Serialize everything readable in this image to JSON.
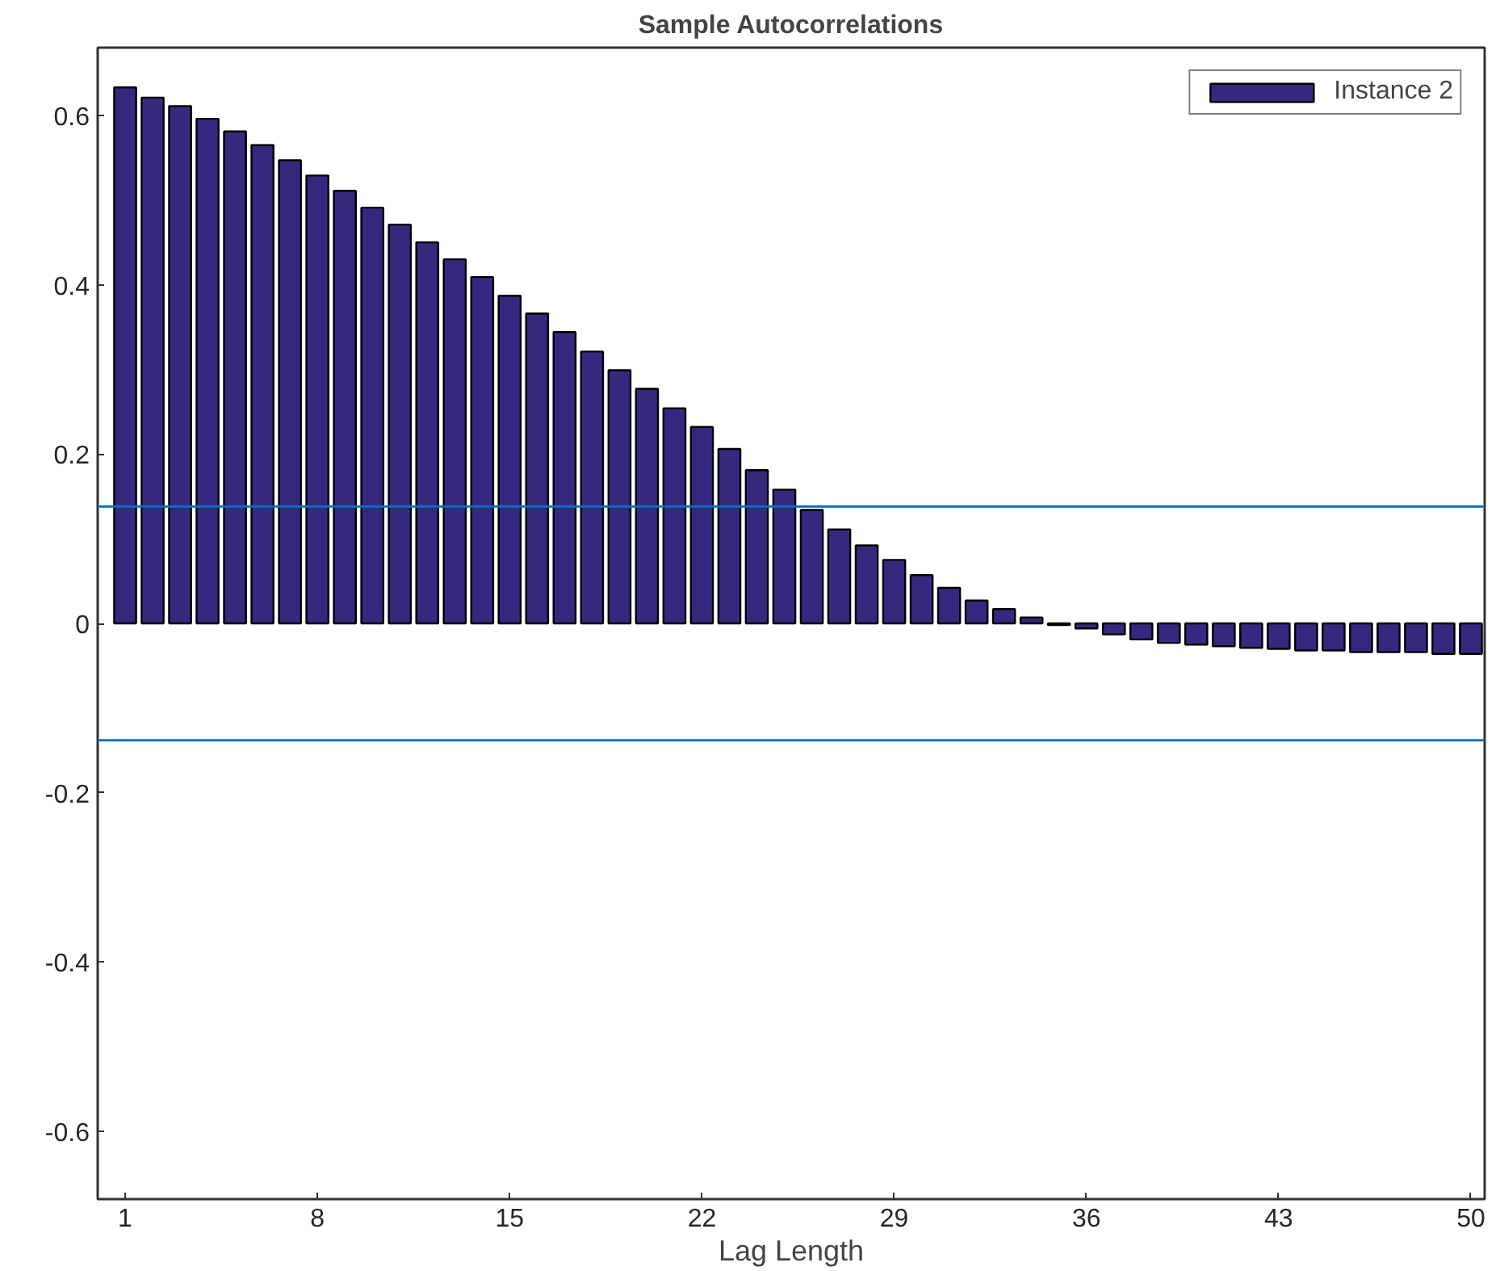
{
  "chart_data": {
    "type": "bar",
    "title": "Sample Autocorrelations",
    "xlabel": "Lag Length",
    "x": [
      1,
      2,
      3,
      4,
      5,
      6,
      7,
      8,
      9,
      10,
      11,
      12,
      13,
      14,
      15,
      16,
      17,
      18,
      19,
      20,
      21,
      22,
      23,
      24,
      25,
      26,
      27,
      28,
      29,
      30,
      31,
      32,
      33,
      34,
      35,
      36,
      37,
      38,
      39,
      40,
      41,
      42,
      43,
      44,
      45,
      46,
      47,
      48,
      49,
      50
    ],
    "series": [
      {
        "name": "Instance 2",
        "color": "#35297f",
        "values": [
          0.633,
          0.621,
          0.611,
          0.596,
          0.581,
          0.565,
          0.547,
          0.529,
          0.511,
          0.491,
          0.471,
          0.45,
          0.43,
          0.409,
          0.387,
          0.366,
          0.344,
          0.321,
          0.299,
          0.277,
          0.254,
          0.232,
          0.206,
          0.181,
          0.158,
          0.134,
          0.111,
          0.092,
          0.075,
          0.057,
          0.042,
          0.027,
          0.017,
          0.007,
          -0.002,
          -0.006,
          -0.013,
          -0.019,
          -0.023,
          -0.025,
          -0.027,
          -0.029,
          -0.03,
          -0.032,
          -0.032,
          -0.034,
          -0.034,
          -0.034,
          -0.036,
          -0.036
        ]
      }
    ],
    "xlim": [
      0,
      50.5
    ],
    "xticks": [
      1,
      8,
      15,
      22,
      29,
      36,
      43,
      50
    ],
    "ylim": [
      -0.68,
      0.68
    ],
    "yticks": [
      -0.6,
      -0.4,
      -0.2,
      0,
      0.2,
      0.4,
      0.6
    ],
    "ref_lines": [
      {
        "axis": "y",
        "value": 0.138,
        "color": "#0072bd"
      },
      {
        "axis": "y",
        "value": -0.138,
        "color": "#0072bd"
      }
    ],
    "grid": false,
    "legend": "top right"
  }
}
